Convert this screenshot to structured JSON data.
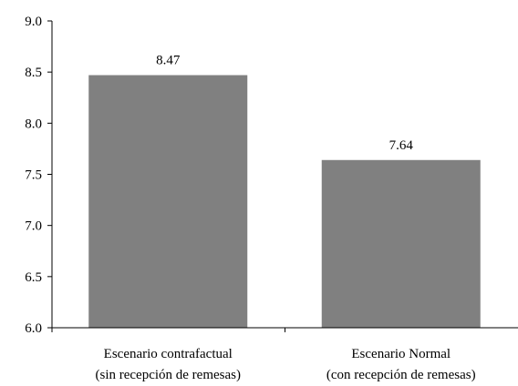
{
  "chart_data": {
    "type": "bar",
    "title": "",
    "xlabel": "",
    "ylabel": "",
    "ylim": [
      6.0,
      9.0
    ],
    "yticks": [
      "6.0",
      "6.5",
      "7.0",
      "7.5",
      "8.0",
      "8.5",
      "9.0"
    ],
    "categories": [
      [
        "Escenario contrafactual",
        "(sin recepción de remesas)"
      ],
      [
        "Escenario Normal",
        "(con recepción de remesas)"
      ]
    ],
    "values": [
      8.47,
      7.64
    ],
    "data_labels": [
      "8.47",
      "7.64"
    ],
    "bar_color": "#808080",
    "grid": false,
    "legend": "none"
  }
}
